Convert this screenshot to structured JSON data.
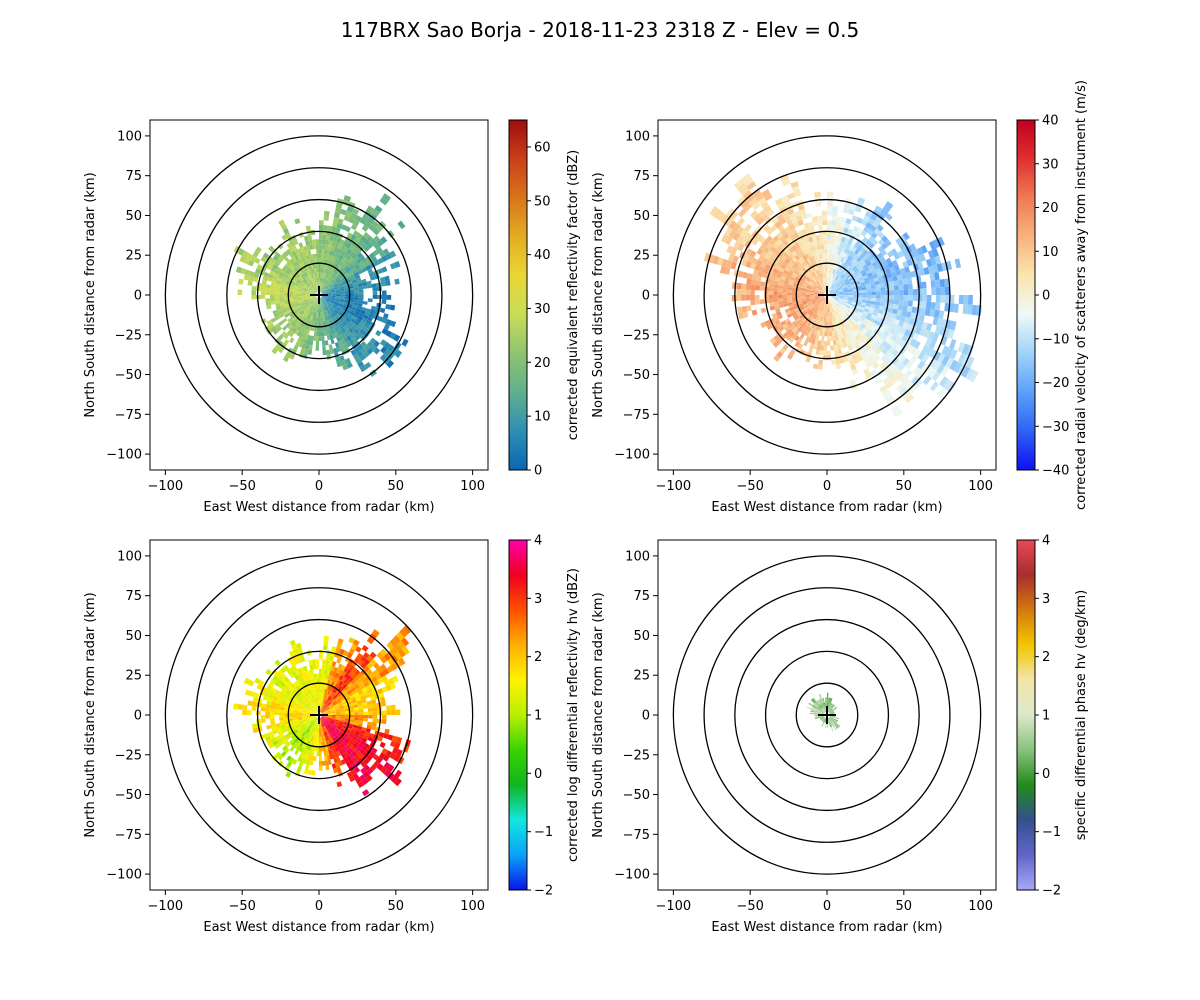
{
  "figure": {
    "title": "117BRX Sao Borja - 2018-11-23 2318 Z -  Elev = 0.5"
  },
  "chart_data": [
    {
      "type": "heatmap",
      "id": "ref",
      "title": "",
      "xlabel": "East West distance from radar (km)",
      "ylabel": "North South distance from radar (km)",
      "xlim": [
        -110,
        110
      ],
      "ylim": [
        -110,
        110
      ],
      "xticks": [
        -100,
        -50,
        0,
        50,
        100
      ],
      "yticks": [
        -100,
        -75,
        -50,
        -25,
        0,
        25,
        50,
        75,
        100
      ],
      "range_rings_km": [
        20,
        40,
        60,
        80,
        100
      ],
      "radar_location": [
        0,
        0
      ],
      "colorbar": {
        "label": "corrected equivalent reflectivity factor (dBZ)",
        "vmin": 0,
        "vmax": 65,
        "ticks": [
          0,
          10,
          20,
          30,
          40,
          50,
          60
        ],
        "colors": [
          "#0a66b0",
          "#2e8fb5",
          "#5fb08c",
          "#8fc46f",
          "#c8dd58",
          "#e9d735",
          "#e3ad22",
          "#d9741a",
          "#c9401a",
          "#a00c0c"
        ]
      },
      "echo_extent_km": [
        55,
        60,
        65,
        63,
        48,
        47,
        45,
        55,
        60,
        55,
        45,
        35,
        35,
        40,
        40,
        35,
        35,
        40,
        50,
        55,
        45,
        40,
        45,
        40
      ],
      "echo_values": [
        22,
        20,
        18,
        15,
        10,
        8,
        6,
        6,
        8,
        10,
        14,
        18,
        20,
        22,
        24,
        24,
        26,
        28,
        28,
        26,
        24,
        24,
        25,
        24
      ]
    },
    {
      "type": "heatmap",
      "id": "vel",
      "title": "",
      "xlabel": "East West distance from radar (km)",
      "ylabel": "North South distance from radar (km)",
      "xlim": [
        -110,
        110
      ],
      "ylim": [
        -110,
        110
      ],
      "xticks": [
        -100,
        -50,
        0,
        50,
        100
      ],
      "yticks": [
        -100,
        -75,
        -50,
        -25,
        0,
        25,
        50,
        75,
        100
      ],
      "range_rings_km": [
        20,
        40,
        60,
        80,
        100
      ],
      "radar_location": [
        0,
        0
      ],
      "colorbar": {
        "label": "corrected radial velocity of scatterers away from instrument (m/s)",
        "vmin": -40,
        "vmax": 40,
        "ticks": [
          -40,
          -30,
          -20,
          -10,
          0,
          10,
          20,
          30,
          40
        ],
        "colors": [
          "#1010f0",
          "#2f62f5",
          "#5ca0f8",
          "#9fd3f8",
          "#eef9f6",
          "#fbe5ae",
          "#f9b27e",
          "#f07a55",
          "#e03030",
          "#c00020"
        ]
      },
      "echo_extent_km": [
        60,
        62,
        65,
        65,
        75,
        85,
        90,
        100,
        100,
        80,
        55,
        45,
        40,
        45,
        45,
        40,
        40,
        55,
        65,
        80,
        85,
        80,
        70,
        60
      ],
      "echo_values": [
        -2,
        -8,
        -12,
        -14,
        -15,
        -15,
        -12,
        -8,
        -4,
        0,
        4,
        8,
        10,
        12,
        14,
        15,
        16,
        16,
        16,
        14,
        12,
        10,
        8,
        4
      ]
    },
    {
      "type": "heatmap",
      "id": "zdr",
      "title": "",
      "xlabel": "East West distance from radar (km)",
      "ylabel": "North South distance from radar (km)",
      "xlim": [
        -110,
        110
      ],
      "ylim": [
        -110,
        110
      ],
      "xticks": [
        -100,
        -50,
        0,
        50,
        100
      ],
      "yticks": [
        -100,
        -75,
        -50,
        -25,
        0,
        25,
        50,
        75,
        100
      ],
      "range_rings_km": [
        20,
        40,
        60,
        80,
        100
      ],
      "radar_location": [
        0,
        0
      ],
      "colorbar": {
        "label": "corrected log differential reflectivity hv (dBZ)",
        "vmin": -2,
        "vmax": 4,
        "ticks": [
          -2,
          -1,
          0,
          1,
          2,
          3,
          4
        ],
        "colors": [
          "#0a16e8",
          "#0aa2f8",
          "#12e6e0",
          "#11b522",
          "#39d400",
          "#b8f000",
          "#fff200",
          "#ffaf00",
          "#ff5000",
          "#f00020",
          "#ff00aa"
        ]
      },
      "echo_extent_km": [
        45,
        50,
        60,
        70,
        50,
        47,
        45,
        55,
        60,
        55,
        45,
        35,
        35,
        40,
        40,
        35,
        35,
        40,
        50,
        55,
        45,
        40,
        45,
        40
      ],
      "echo_values": [
        1.5,
        2.5,
        3.0,
        2.5,
        2.0,
        2.0,
        2.5,
        3.2,
        3.5,
        3.6,
        3.0,
        2.2,
        1.6,
        1.2,
        1.0,
        1.2,
        1.5,
        1.8,
        1.8,
        1.6,
        1.4,
        1.4,
        1.5,
        1.5
      ]
    },
    {
      "type": "heatmap",
      "id": "kdp",
      "title": "",
      "xlabel": "East West distance from radar (km)",
      "ylabel": "North South distance from radar (km)",
      "xlim": [
        -110,
        110
      ],
      "ylim": [
        -110,
        110
      ],
      "xticks": [
        -100,
        -50,
        0,
        50,
        100
      ],
      "yticks": [
        -100,
        -75,
        -50,
        -25,
        0,
        25,
        50,
        75,
        100
      ],
      "range_rings_km": [
        20,
        40,
        60,
        80,
        100
      ],
      "radar_location": [
        0,
        0
      ],
      "colorbar": {
        "label": "specific differential phase hv (deg/km)",
        "vmin": -2,
        "vmax": 4,
        "ticks": [
          -2,
          -1,
          0,
          1,
          2,
          3,
          4
        ],
        "colors": [
          "#a8a8f8",
          "#6066c8",
          "#33508c",
          "#228b1c",
          "#88c27c",
          "#dce8cc",
          "#f2e6a8",
          "#f2c600",
          "#d4790e",
          "#a82e2e",
          "#e84858"
        ]
      },
      "echo_extent_km": [
        10,
        8,
        6,
        5,
        4,
        3,
        4,
        6,
        8,
        8,
        7,
        6,
        5,
        5,
        4,
        4,
        5,
        7,
        9,
        11,
        12,
        12,
        11,
        10
      ],
      "echo_values": [
        0.4,
        0.5,
        0.4,
        0.3,
        0.2,
        0.2,
        0.3,
        0.4,
        0.5,
        0.6,
        0.5,
        0.4,
        0.3,
        0.3,
        0.3,
        0.3,
        0.4,
        0.5,
        0.6,
        0.6,
        0.5,
        0.5,
        0.4,
        0.4
      ]
    }
  ]
}
